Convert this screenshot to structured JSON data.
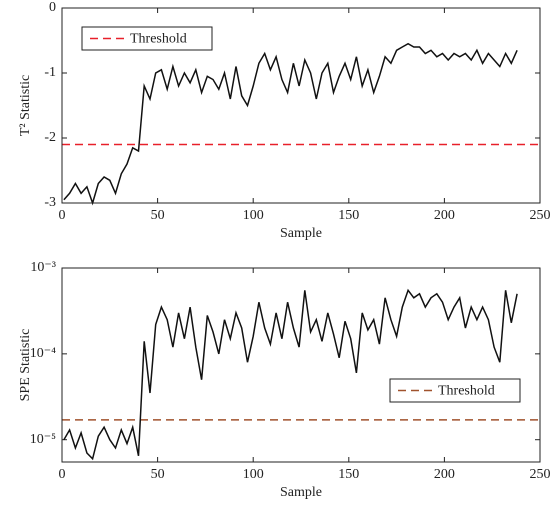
{
  "chart_data": [
    {
      "type": "line",
      "ylabel": "T² Statistic",
      "xlabel": "Sample",
      "x": [
        1,
        4,
        7,
        10,
        13,
        16,
        19,
        22,
        25,
        28,
        31,
        34,
        37,
        40,
        43,
        46,
        49,
        52,
        55,
        58,
        61,
        64,
        67,
        70,
        73,
        76,
        79,
        82,
        85,
        88,
        91,
        94,
        97,
        100,
        103,
        106,
        109,
        112,
        115,
        118,
        121,
        124,
        127,
        130,
        133,
        136,
        139,
        142,
        145,
        148,
        151,
        154,
        157,
        160,
        163,
        166,
        169,
        172,
        175,
        178,
        181,
        184,
        187,
        190,
        193,
        196,
        199,
        202,
        205,
        208,
        211,
        214,
        217,
        220,
        223,
        226,
        229,
        232,
        235,
        238
      ],
      "values": [
        -2.95,
        -2.85,
        -2.7,
        -2.85,
        -2.75,
        -3.0,
        -2.7,
        -2.6,
        -2.65,
        -2.85,
        -2.55,
        -2.4,
        -2.15,
        -2.2,
        -1.2,
        -1.4,
        -1.0,
        -0.95,
        -1.25,
        -0.9,
        -1.2,
        -1.0,
        -1.15,
        -0.95,
        -1.3,
        -1.05,
        -1.1,
        -1.25,
        -1.0,
        -1.4,
        -0.9,
        -1.35,
        -1.5,
        -1.2,
        -0.85,
        -0.7,
        -0.95,
        -0.75,
        -1.1,
        -1.3,
        -0.85,
        -1.2,
        -0.8,
        -1.0,
        -1.4,
        -1.0,
        -0.85,
        -1.3,
        -1.05,
        -0.85,
        -1.1,
        -0.75,
        -1.2,
        -0.95,
        -1.3,
        -1.05,
        -0.75,
        -0.85,
        -0.65,
        -0.6,
        -0.55,
        -0.6,
        -0.6,
        -0.7,
        -0.65,
        -0.75,
        -0.7,
        -0.8,
        -0.7,
        -0.75,
        -0.7,
        -0.8,
        -0.65,
        -0.85,
        -0.7,
        -0.8,
        -0.9,
        -0.7,
        -0.85,
        -0.65
      ],
      "color": "#111111",
      "threshold": {
        "name": "Threshold",
        "value": -2.1,
        "color": "#e8202a"
      },
      "legend": "upper left",
      "xlim": [
        0,
        250
      ],
      "xticks": [
        0,
        50,
        100,
        150,
        200,
        250
      ],
      "ylim": [
        -3,
        0
      ],
      "yticks": [
        -3,
        -2,
        -1,
        0
      ]
    },
    {
      "type": "line",
      "ylabel": "SPE Statistic",
      "xlabel": "Sample",
      "log_y": true,
      "x": [
        1,
        4,
        7,
        10,
        13,
        16,
        19,
        22,
        25,
        28,
        31,
        34,
        37,
        40,
        43,
        46,
        49,
        52,
        55,
        58,
        61,
        64,
        67,
        70,
        73,
        76,
        79,
        82,
        85,
        88,
        91,
        94,
        97,
        100,
        103,
        106,
        109,
        112,
        115,
        118,
        121,
        124,
        127,
        130,
        133,
        136,
        139,
        142,
        145,
        148,
        151,
        154,
        157,
        160,
        163,
        166,
        169,
        172,
        175,
        178,
        181,
        184,
        187,
        190,
        193,
        196,
        199,
        202,
        205,
        208,
        211,
        214,
        217,
        220,
        223,
        226,
        229,
        232,
        235,
        238
      ],
      "values": [
        1e-05,
        1.3e-05,
        8e-06,
        1.2e-05,
        7e-06,
        6e-06,
        1.1e-05,
        1.4e-05,
        1e-05,
        8e-06,
        1.3e-05,
        9e-06,
        1.4e-05,
        6.5e-06,
        0.00014,
        3.5e-05,
        0.00022,
        0.00035,
        0.00025,
        0.00012,
        0.0003,
        0.00015,
        0.00035,
        0.00012,
        5e-05,
        0.00028,
        0.00018,
        0.0001,
        0.00025,
        0.00015,
        0.0003,
        0.0002,
        8e-05,
        0.00016,
        0.0004,
        0.0002,
        0.00013,
        0.0003,
        0.00015,
        0.0004,
        0.0002,
        0.00012,
        0.00055,
        0.00018,
        0.00025,
        0.00014,
        0.0003,
        0.00017,
        9e-05,
        0.00024,
        0.00015,
        6e-05,
        0.0003,
        0.00019,
        0.00025,
        0.00013,
        0.00045,
        0.00025,
        0.00016,
        0.00035,
        0.00055,
        0.00045,
        0.0005,
        0.00035,
        0.00045,
        0.0005,
        0.0004,
        0.00025,
        0.00035,
        0.00045,
        0.0002,
        0.00035,
        0.00025,
        0.00035,
        0.00025,
        0.00012,
        8e-05,
        0.00055,
        0.00023,
        0.0005
      ],
      "color": "#111111",
      "threshold": {
        "name": "Threshold",
        "value": 1.7e-05,
        "color": "#a0522d"
      },
      "legend": "center right",
      "xlim": [
        0,
        250
      ],
      "xticks": [
        0,
        50,
        100,
        150,
        200,
        250
      ],
      "ylim": [
        5.5e-06,
        0.001
      ],
      "yticks": [
        {
          "value": 1e-05,
          "label": "10⁻⁵"
        },
        {
          "value": 0.0001,
          "label": "10⁻⁴"
        },
        {
          "value": 0.001,
          "label": "10⁻³"
        }
      ]
    }
  ]
}
